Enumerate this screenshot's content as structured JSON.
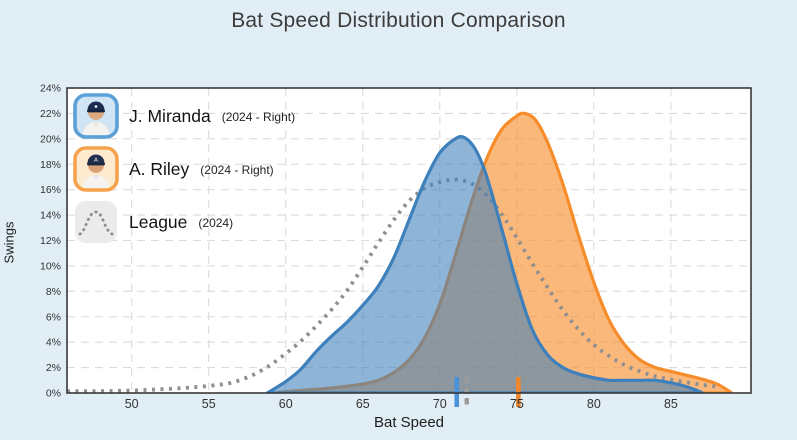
{
  "title": "Bat Speed Distribution Comparison",
  "axes": {
    "x_label": "Bat Speed",
    "y_label": "Swings",
    "x_tick_values": [
      50,
      55,
      60,
      65,
      70,
      75,
      80,
      85
    ],
    "x_tick_labels": [
      "50",
      "55",
      "60",
      "65",
      "70",
      "75",
      "80",
      "85"
    ],
    "y_tick_values": [
      0,
      2,
      4,
      6,
      8,
      10,
      12,
      14,
      16,
      18,
      20,
      22,
      24
    ],
    "y_tick_labels": [
      "0%",
      "2%",
      "4%",
      "6%",
      "8%",
      "10%",
      "12%",
      "14%",
      "16%",
      "18%",
      "20%",
      "22%",
      "24%"
    ]
  },
  "legend": {
    "items": [
      {
        "id": "miranda",
        "name": "J. Miranda",
        "detail": "(2024 - Right)",
        "accent": "#5ba0d6",
        "bg": "#cfe5f4",
        "icon": "player-photo"
      },
      {
        "id": "riley",
        "name": "A. Riley",
        "detail": "(2024 - Right)",
        "accent": "#f6a34c",
        "bg": "#fdeacf",
        "icon": "player-photo"
      },
      {
        "id": "league",
        "name": "League",
        "detail": "(2024)",
        "accent": "#ebebeb",
        "bg": "#ebebeb",
        "icon": "dotted-distribution"
      }
    ]
  },
  "chart_data": {
    "type": "area",
    "title": "Bat Speed Distribution Comparison",
    "xlabel": "Bat Speed",
    "ylabel": "Swings",
    "x_domain": [
      45.8,
      90.2
    ],
    "y_domain": [
      0,
      24
    ],
    "y_unit": "%",
    "grid": true,
    "legend_position": "top-left-inside",
    "series": [
      {
        "id": "riley",
        "name": "A. Riley",
        "season": "2024",
        "handedness": "Right",
        "style": "area",
        "color": "#f78c2a",
        "fill": "rgba(247,140,42,0.62)",
        "points": [
          [
            59.5,
            0.05
          ],
          [
            61,
            0.2
          ],
          [
            63,
            0.4
          ],
          [
            65,
            0.7
          ],
          [
            66,
            1.0
          ],
          [
            67,
            1.6
          ],
          [
            68,
            2.6
          ],
          [
            69,
            4.3
          ],
          [
            70,
            7.0
          ],
          [
            71,
            10.8
          ],
          [
            72,
            14.8
          ],
          [
            73,
            18.3
          ],
          [
            74,
            20.7
          ],
          [
            75,
            21.8
          ],
          [
            75.5,
            22.0
          ],
          [
            76.2,
            21.5
          ],
          [
            77,
            19.7
          ],
          [
            78,
            16.4
          ],
          [
            79,
            12.4
          ],
          [
            80,
            8.7
          ],
          [
            81,
            5.7
          ],
          [
            82,
            3.8
          ],
          [
            83,
            2.6
          ],
          [
            84,
            2.0
          ],
          [
            85,
            1.7
          ],
          [
            86,
            1.4
          ],
          [
            87,
            1.1
          ],
          [
            88,
            0.7
          ],
          [
            88.9,
            0.05
          ]
        ]
      },
      {
        "id": "league",
        "name": "League",
        "season": "2024",
        "style": "dotted-line",
        "color": "#8f8f8f",
        "points": [
          [
            45.8,
            0.15
          ],
          [
            48,
            0.15
          ],
          [
            50,
            0.2
          ],
          [
            52,
            0.3
          ],
          [
            54,
            0.45
          ],
          [
            56,
            0.7
          ],
          [
            57,
            1.0
          ],
          [
            58,
            1.5
          ],
          [
            59,
            2.2
          ],
          [
            60,
            3.1
          ],
          [
            61,
            4.1
          ],
          [
            62,
            5.3
          ],
          [
            63,
            6.6
          ],
          [
            64,
            8.1
          ],
          [
            65,
            9.9
          ],
          [
            66,
            11.8
          ],
          [
            67,
            13.6
          ],
          [
            68,
            15.1
          ],
          [
            69,
            16.1
          ],
          [
            70,
            16.6
          ],
          [
            71,
            16.8
          ],
          [
            72,
            16.5
          ],
          [
            73,
            15.6
          ],
          [
            74,
            14.1
          ],
          [
            75,
            12.2
          ],
          [
            76,
            10.2
          ],
          [
            77,
            8.3
          ],
          [
            78,
            6.5
          ],
          [
            79,
            5.0
          ],
          [
            80,
            3.8
          ],
          [
            81,
            2.9
          ],
          [
            82,
            2.2
          ],
          [
            83,
            1.7
          ],
          [
            84,
            1.3
          ],
          [
            85,
            1.05
          ],
          [
            86,
            0.85
          ],
          [
            87,
            0.65
          ],
          [
            88,
            0.5
          ]
        ]
      },
      {
        "id": "miranda",
        "name": "J. Miranda",
        "season": "2024",
        "handedness": "Right",
        "style": "area",
        "color": "#3d80bb",
        "fill": "rgba(61,128,187,0.58)",
        "points": [
          [
            58.8,
            0
          ],
          [
            60,
            0.9
          ],
          [
            61,
            1.9
          ],
          [
            62,
            3.3
          ],
          [
            63,
            4.5
          ],
          [
            64,
            5.6
          ],
          [
            65,
            6.9
          ],
          [
            66,
            8.4
          ],
          [
            67,
            10.6
          ],
          [
            68,
            13.6
          ],
          [
            69,
            16.6
          ],
          [
            70,
            18.9
          ],
          [
            71,
            20.0
          ],
          [
            71.6,
            20.1
          ],
          [
            72.3,
            19.2
          ],
          [
            73,
            17.2
          ],
          [
            74,
            13.0
          ],
          [
            75,
            8.6
          ],
          [
            76,
            5.0
          ],
          [
            77,
            3.0
          ],
          [
            78,
            2.0
          ],
          [
            79,
            1.5
          ],
          [
            80,
            1.2
          ],
          [
            81,
            1.0
          ],
          [
            82,
            1.0
          ],
          [
            83,
            1.0
          ],
          [
            84,
            1.0
          ],
          [
            85,
            0.8
          ],
          [
            86,
            0.5
          ],
          [
            87,
            0.05
          ]
        ]
      }
    ],
    "mean_markers": [
      {
        "series": "A. Riley",
        "x": 75.1,
        "color": "#f0862d",
        "line_style": "solid"
      },
      {
        "series": "League",
        "x": 71.75,
        "color": "#9b9b9b",
        "line_style": "dashed"
      },
      {
        "series": "J. Miranda",
        "x": 71.1,
        "color": "#4b93d9",
        "line_style": "solid"
      }
    ]
  },
  "colors": {
    "page_background": "#e1eef5",
    "plot_background": "#ffffff",
    "plot_border": "#383838",
    "grid": "#dcdcdc",
    "tick_text": "#333333"
  }
}
